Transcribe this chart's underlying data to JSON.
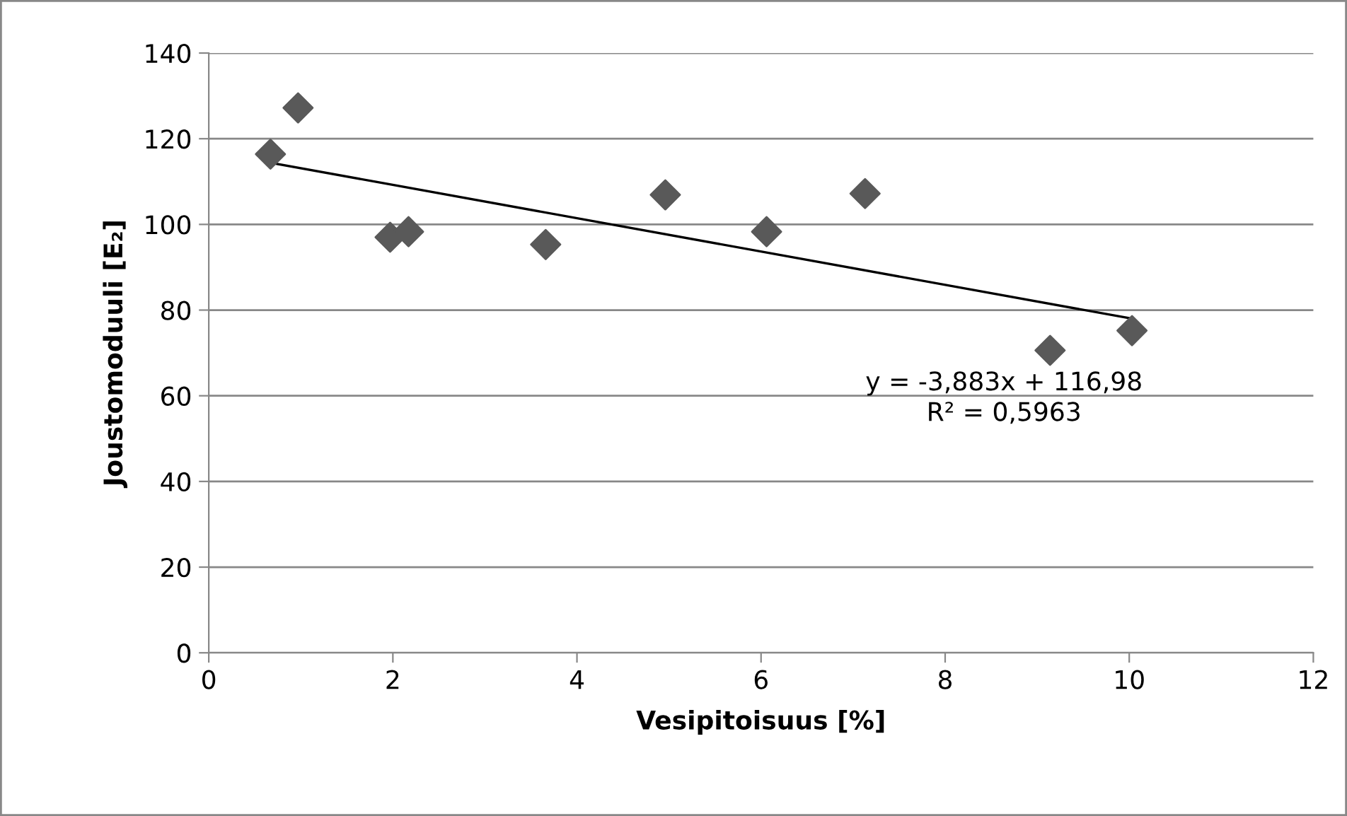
{
  "chart_data": {
    "type": "scatter",
    "xlabel": "Vesipitoisuus [%]",
    "ylabel": "Joustomoduuli [E₂]",
    "series": [
      {
        "color": "#595959",
        "marker": "diamond",
        "x": [
          0.67,
          0.97,
          1.97,
          2.17,
          3.66,
          4.96,
          6.06,
          7.13,
          9.14,
          10.03
        ],
        "values": [
          116.4,
          127.2,
          97,
          98.3,
          95.3,
          106.9,
          98.3,
          107.2,
          70.6,
          75.2
        ]
      },
      {
        "type": "line",
        "color": "#000000",
        "marker": "none",
        "line_style": "solid",
        "x": [
          0.67,
          10.03
        ],
        "values": [
          114.4,
          78.0
        ]
      }
    ],
    "annotations": [
      "y = -3,883x + 116,98\nR² = 0,5963"
    ],
    "xlim": [
      0,
      12
    ],
    "xticks": [
      0,
      2,
      4,
      6,
      8,
      10,
      12
    ],
    "ylim": [
      0,
      140
    ],
    "yticks": [
      0,
      20,
      40,
      60,
      80,
      100,
      120,
      140
    ],
    "grid": "y",
    "legend": false
  }
}
